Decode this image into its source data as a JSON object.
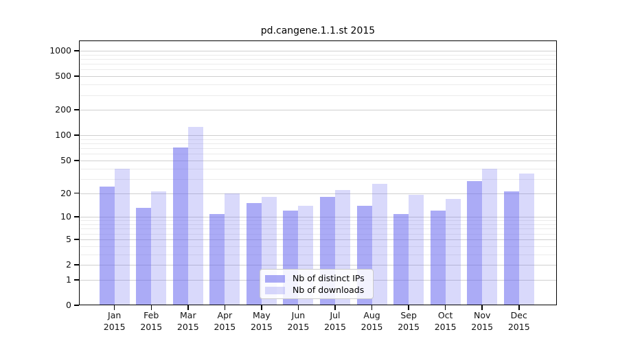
{
  "chart_data": {
    "type": "bar",
    "title": "pd.cangene.1.1.st 2015",
    "categories": [
      "Jan",
      "Feb",
      "Mar",
      "Apr",
      "May",
      "Jun",
      "Jul",
      "Aug",
      "Sep",
      "Oct",
      "Nov",
      "Dec"
    ],
    "category_year": "2015",
    "series": [
      {
        "name": "Nb of distinct IPs",
        "color": "#6666ee",
        "alpha": 0.55,
        "values": [
          24,
          13,
          72,
          11,
          15,
          12,
          18,
          14,
          11,
          12,
          28,
          21
        ]
      },
      {
        "name": "Nb of downloads",
        "color": "#6666ee",
        "alpha": 0.25,
        "values": [
          40,
          21,
          125,
          20,
          18,
          14,
          22,
          26,
          19,
          17,
          40,
          35
        ]
      }
    ],
    "y_scale": "log1p",
    "y_ticks": [
      1000,
      500,
      200,
      100,
      50,
      20,
      10,
      5,
      2,
      1,
      0
    ],
    "y_minor_ticks": [
      900,
      800,
      700,
      600,
      400,
      300,
      90,
      80,
      70,
      60,
      40,
      30,
      9,
      8,
      7,
      6,
      4,
      3
    ],
    "ylim": [
      0,
      1300
    ],
    "grid": true,
    "legend_position": "lower-center-inside",
    "background_color": "#ffffff",
    "major_grid_color": "#cfcfcf",
    "minor_grid_color": "#ebebeb"
  }
}
